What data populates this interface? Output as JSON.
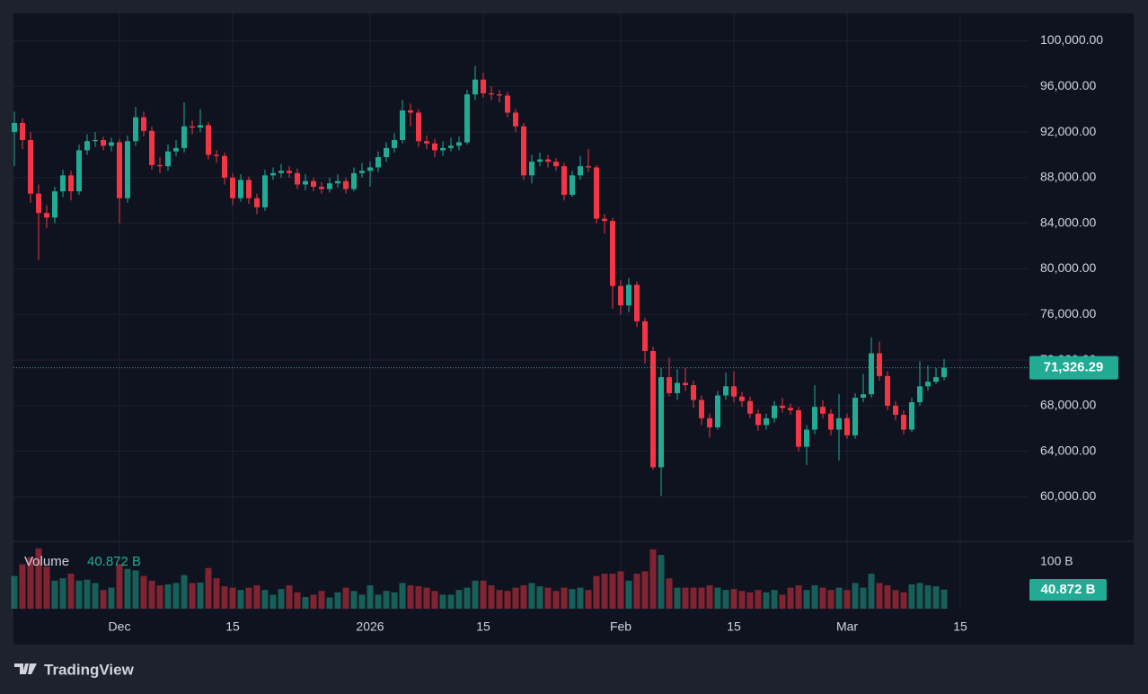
{
  "chart_data": {
    "type": "candlestick",
    "categories": [
      null,
      null,
      null,
      null,
      null,
      null,
      null,
      null,
      null,
      null,
      null,
      null,
      null,
      "Dec",
      null,
      null,
      null,
      null,
      null,
      null,
      null,
      null,
      null,
      null,
      null,
      null,
      null,
      "15",
      null,
      null,
      null,
      null,
      null,
      null,
      null,
      null,
      null,
      null,
      null,
      null,
      null,
      null,
      null,
      null,
      "2026",
      null,
      null,
      null,
      null,
      null,
      null,
      null,
      null,
      null,
      null,
      null,
      null,
      null,
      "15",
      null,
      null,
      null,
      null,
      null,
      null,
      null,
      null,
      null,
      null,
      null,
      null,
      null,
      null,
      null,
      null,
      "Feb",
      null,
      null,
      null,
      null,
      null,
      null,
      null,
      null,
      null,
      null,
      null,
      null,
      null,
      "15",
      null,
      null,
      null,
      null,
      null,
      null,
      null,
      null,
      null,
      null,
      null,
      null,
      null,
      "Mar",
      null,
      null,
      null,
      null,
      null,
      null,
      null,
      null,
      null,
      null,
      null,
      null,
      null,
      "15"
    ],
    "open": [
      92000,
      92800,
      91300,
      86600,
      84900,
      84500,
      86800,
      88200,
      86800,
      90400,
      91200,
      91300,
      90800,
      91100,
      86200,
      91200,
      93300,
      92100,
      89100,
      89000,
      90300,
      90600,
      92500,
      92400,
      92600,
      90000,
      89900,
      88000,
      86200,
      87800,
      86200,
      85400,
      88200,
      88400,
      88600,
      88400,
      87400,
      87700,
      87200,
      87000,
      87500,
      87700,
      87000,
      88400,
      88600,
      88900,
      89800,
      90600,
      91300,
      93900,
      93700,
      91200,
      91000,
      90400,
      90600,
      90800,
      91100,
      95300,
      96600,
      95400,
      95300,
      95200,
      93700,
      92500,
      88200,
      89400,
      89600,
      89400,
      89000,
      86500,
      88200,
      89000,
      88900,
      84400,
      84200,
      78500,
      76800,
      78600,
      75400,
      72800,
      62600,
      70500,
      69100,
      70000,
      69800,
      68500,
      66900,
      66100,
      68900,
      69700,
      68800,
      68400,
      67300,
      66300,
      66900,
      68000,
      67800,
      67600,
      64400,
      65900,
      67900,
      67300,
      65900,
      66900,
      65400,
      68700,
      69000,
      72600,
      70600,
      68000,
      67200,
      65900,
      68300,
      69700,
      70100,
      70500,
      null,
      null
    ],
    "high": [
      93800,
      93200,
      92000,
      87400,
      85600,
      87200,
      88700,
      88600,
      90900,
      91800,
      92000,
      91600,
      91500,
      91400,
      91700,
      94200,
      93800,
      92500,
      89800,
      90900,
      91300,
      94600,
      93000,
      94000,
      92900,
      90400,
      90200,
      88400,
      88300,
      88100,
      86600,
      88700,
      88900,
      89200,
      89000,
      88800,
      88300,
      88000,
      87600,
      88000,
      88300,
      88000,
      88900,
      89300,
      89400,
      90300,
      91100,
      91900,
      94800,
      94500,
      94000,
      91700,
      91400,
      91200,
      91500,
      91600,
      95700,
      97800,
      97200,
      96000,
      95700,
      95500,
      94000,
      92800,
      90000,
      90200,
      90000,
      89700,
      89300,
      88600,
      89900,
      90500,
      89100,
      84800,
      84500,
      79000,
      79200,
      78900,
      75700,
      73200,
      71300,
      72200,
      71200,
      71300,
      70200,
      68900,
      67300,
      69300,
      70900,
      71000,
      69200,
      68800,
      67700,
      67300,
      68400,
      68700,
      68200,
      67900,
      66300,
      69800,
      68500,
      67700,
      69000,
      67300,
      69100,
      70800,
      74000,
      73600,
      71000,
      68400,
      67600,
      68700,
      71900,
      71500,
      71300,
      72100,
      null,
      null
    ],
    "low": [
      89000,
      90500,
      85800,
      80800,
      83600,
      84000,
      86300,
      86000,
      86500,
      90000,
      90700,
      90400,
      90300,
      84000,
      85800,
      90800,
      91600,
      88700,
      88400,
      88600,
      89900,
      90200,
      91800,
      92000,
      89600,
      89300,
      87400,
      85600,
      85900,
      85700,
      84800,
      85100,
      87800,
      88000,
      88000,
      87000,
      86900,
      86800,
      86600,
      86700,
      87100,
      86600,
      86800,
      88000,
      87200,
      88500,
      89400,
      90200,
      91000,
      92500,
      90700,
      90500,
      89800,
      89900,
      90300,
      90400,
      90900,
      94800,
      95000,
      94800,
      94600,
      93300,
      92000,
      87800,
      87500,
      89000,
      88900,
      88600,
      86000,
      86300,
      87800,
      88500,
      84000,
      83100,
      76500,
      76000,
      76200,
      74900,
      71700,
      62400,
      60100,
      68800,
      68500,
      69300,
      67800,
      66300,
      65200,
      65900,
      68500,
      68300,
      67900,
      66900,
      65800,
      65900,
      66500,
      67400,
      67200,
      64000,
      62800,
      65500,
      66900,
      65400,
      63200,
      65100,
      65100,
      68300,
      68700,
      70200,
      67600,
      66700,
      65500,
      65700,
      68000,
      69300,
      69900,
      70200,
      null,
      null
    ],
    "close": [
      92800,
      91300,
      86600,
      84900,
      84500,
      86800,
      88200,
      86800,
      90400,
      91200,
      91300,
      90800,
      91100,
      86200,
      91200,
      93300,
      92100,
      89100,
      89000,
      90300,
      90600,
      92500,
      92400,
      92600,
      90000,
      89900,
      88000,
      86200,
      87800,
      86200,
      85400,
      88200,
      88400,
      88600,
      88400,
      87400,
      87700,
      87200,
      87000,
      87500,
      87700,
      87000,
      88400,
      88600,
      88900,
      89800,
      90600,
      91300,
      93900,
      93700,
      91200,
      91000,
      90400,
      90600,
      90800,
      91100,
      95300,
      96600,
      95400,
      95300,
      95200,
      93700,
      92500,
      88200,
      89400,
      89600,
      89400,
      89000,
      86500,
      88200,
      89000,
      88900,
      84400,
      84200,
      78500,
      76800,
      78600,
      75400,
      72800,
      62600,
      70500,
      69100,
      70000,
      69800,
      68500,
      66900,
      66100,
      68900,
      69700,
      68800,
      68400,
      67300,
      66300,
      66900,
      68000,
      67800,
      67600,
      64400,
      65900,
      67900,
      67300,
      65900,
      66900,
      65400,
      68700,
      69000,
      72600,
      70600,
      68000,
      67200,
      65900,
      68300,
      69700,
      70100,
      70500,
      71326.29,
      null,
      null
    ],
    "last_price_label": "71,326.29",
    "up_color": "#22ab94",
    "down_color": "#f23645",
    "ylim": [
      56100,
      102400
    ],
    "yticks": [
      {
        "value": 60000,
        "label": "60,000.00"
      },
      {
        "value": 64000,
        "label": "64,000.00"
      },
      {
        "value": 68000,
        "label": "68,000.00"
      },
      {
        "value": 72000,
        "label": "72,000.00"
      },
      {
        "value": 76000,
        "label": "76,000.00"
      },
      {
        "value": 80000,
        "label": "80,000.00"
      },
      {
        "value": 84000,
        "label": "84,000.00"
      },
      {
        "value": 88000,
        "label": "88,000.00"
      },
      {
        "value": 92000,
        "label": "92,000.00"
      },
      {
        "value": 96000,
        "label": "96,000.00"
      },
      {
        "value": 100000,
        "label": "100,000.00"
      }
    ],
    "grid": true,
    "volume": {
      "name": "Volume",
      "values": [
        70,
        95,
        110,
        129,
        90,
        60,
        65,
        75,
        60,
        62,
        55,
        40,
        45,
        95,
        85,
        82,
        70,
        60,
        50,
        52,
        55,
        72,
        55,
        56,
        87,
        65,
        48,
        45,
        40,
        45,
        50,
        40,
        30,
        42,
        50,
        35,
        25,
        30,
        38,
        24,
        35,
        45,
        38,
        30,
        50,
        30,
        38,
        35,
        55,
        50,
        48,
        45,
        38,
        30,
        30,
        40,
        45,
        60,
        60,
        50,
        40,
        38,
        45,
        50,
        55,
        48,
        45,
        38,
        45,
        42,
        45,
        40,
        70,
        75,
        75,
        80,
        60,
        75,
        80,
        127,
        115,
        65,
        45,
        45,
        45,
        45,
        50,
        45,
        40,
        42,
        38,
        35,
        40,
        35,
        40,
        30,
        45,
        50,
        40,
        50,
        45,
        40,
        45,
        40,
        55,
        45,
        75,
        55,
        50,
        40,
        35,
        52,
        55,
        50,
        48,
        40.872,
        null,
        null
      ],
      "last_label": "40.872 B",
      "ylim": [
        0,
        144
      ],
      "yticks": [
        {
          "value": 100,
          "label": "100 B"
        }
      ]
    }
  },
  "branding": "TradingView"
}
